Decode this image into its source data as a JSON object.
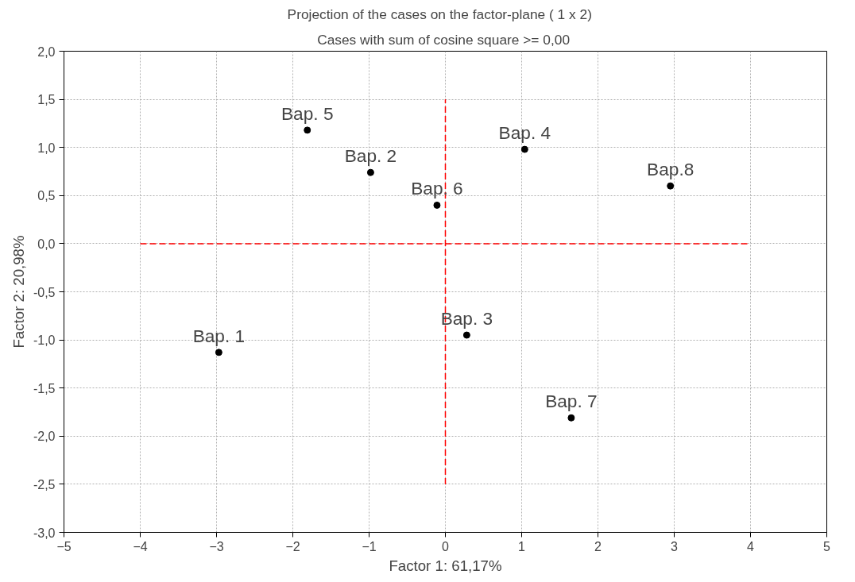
{
  "chart_data": {
    "type": "scatter",
    "title": "Projection of the cases on the factor-plane (  1 x   2)",
    "subtitle": "Cases with sum of cosine square >=  0,00",
    "xlabel": "Factor 1: 61,17%",
    "ylabel": "Factor 2: 20,98%",
    "x": [
      -2.97,
      -0.98,
      0.28,
      1.04,
      -1.81,
      -0.11,
      1.65,
      2.95
    ],
    "series": [
      {
        "color": "#000000",
        "values": [
          -1.13,
          0.74,
          -0.95,
          0.98,
          1.18,
          0.4,
          -1.81,
          0.6
        ]
      },
      {
        "type": "line",
        "color": "#ff0000",
        "line_style": "dashed",
        "marker": "none",
        "x": [
          -4,
          4
        ],
        "values": [
          0,
          0
        ]
      },
      {
        "type": "line",
        "color": "#ff0000",
        "line_style": "dashed",
        "marker": "none",
        "x": [
          0,
          0
        ],
        "values": [
          -2.5,
          1.5
        ]
      }
    ],
    "annotations": [
      {
        "text": "Bap. 1",
        "x": -2.97,
        "y": -1.13
      },
      {
        "text": "Bap. 2",
        "x": -0.98,
        "y": 0.74
      },
      {
        "text": "Bap. 3",
        "x": 0.28,
        "y": -0.95
      },
      {
        "text": "Bap. 4",
        "x": 1.04,
        "y": 0.98
      },
      {
        "text": "Bap. 5",
        "x": -1.81,
        "y": 1.18
      },
      {
        "text": "Bap. 6",
        "x": -0.11,
        "y": 0.4
      },
      {
        "text": "Bap. 7",
        "x": 1.65,
        "y": -1.81
      },
      {
        "text": "Bap.8",
        "x": 2.95,
        "y": 0.6
      }
    ],
    "marker": "circle",
    "grid": true,
    "xlim": [
      -5,
      5
    ],
    "xticks": [
      -5,
      -4,
      -3,
      -2,
      -1,
      0,
      1,
      2,
      3,
      4,
      5
    ],
    "ylim": [
      -3,
      2
    ],
    "yticks": [
      {
        "value": -3,
        "label": "-3,0"
      },
      {
        "value": -2.5,
        "label": "-2,5"
      },
      {
        "value": -2,
        "label": "-2,0"
      },
      {
        "value": -1.5,
        "label": "-1,5"
      },
      {
        "value": -1,
        "label": "-1,0"
      },
      {
        "value": -0.5,
        "label": "-0,5"
      },
      {
        "value": 0,
        "label": "0,0"
      },
      {
        "value": 0.5,
        "label": "0,5"
      },
      {
        "value": 1,
        "label": "1,0"
      },
      {
        "value": 1.5,
        "label": "1,5"
      },
      {
        "value": 2,
        "label": "2,0"
      }
    ]
  }
}
